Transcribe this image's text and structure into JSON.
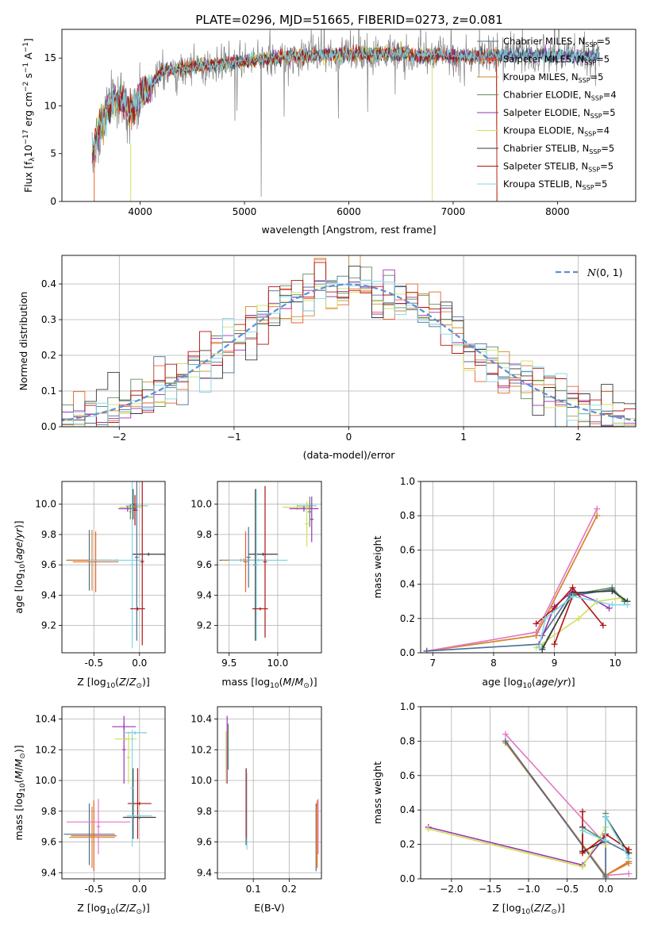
{
  "title": "PLATE=0296, MJD=51665, FIBERID=0273, z=0.081",
  "colors": {
    "chabrier_miles": "#4c6f93",
    "salpeter_miles": "#e8602c",
    "kroupa_miles": "#d08a2c",
    "chabrier_elodie": "#5e8d5e",
    "salpeter_elodie": "#9b32b0",
    "kroupa_elodie": "#cfe05a",
    "chabrier_stelib": "#3a3a3a",
    "salpeter_stelib": "#b31212",
    "kroupa_stelib": "#7fd6e8",
    "extra_pink": "#e377c2",
    "data_gray": "#808080",
    "normal_dashed": "#5b8fd6"
  },
  "chart_data": [
    {
      "type": "line",
      "id": "spectrum",
      "xlabel": "wavelength [Angstrom, rest frame]",
      "ylabel": "Flux [f_λ10^-17 erg cm^-2 s^-1 A^-1]",
      "xlim": [
        3250,
        8750
      ],
      "ylim": [
        0,
        18
      ],
      "xticks": [
        4000,
        5000,
        6000,
        7000,
        8000
      ],
      "yticks": [
        0,
        5,
        10,
        15
      ],
      "legend": "upper-right",
      "series": [
        {
          "name": "Chabrier MILES, N_SSP=5",
          "sub": "SSP",
          "suffix": "=5",
          "prefix": "Chabrier MILES, N"
        },
        {
          "name": "Salpeter MILES, N_SSP=5",
          "sub": "SSP",
          "suffix": "=5",
          "prefix": "Salpeter MILES, N"
        },
        {
          "name": "Kroupa MILES, N_SSP=5",
          "sub": "SSP",
          "suffix": "=5",
          "prefix": "Kroupa MILES, N"
        },
        {
          "name": "Chabrier ELODIE, N_SSP=4",
          "sub": "SSP",
          "suffix": "=4",
          "prefix": "Chabrier ELODIE, N"
        },
        {
          "name": "Salpeter ELODIE, N_SSP=5",
          "sub": "SSP",
          "suffix": "=5",
          "prefix": "Salpeter ELODIE, N"
        },
        {
          "name": "Kroupa ELODIE, N_SSP=4",
          "sub": "SSP",
          "suffix": "=4",
          "prefix": "Kroupa ELODIE, N"
        },
        {
          "name": "Chabrier STELIB, N_SSP=5",
          "sub": "SSP",
          "suffix": "=5",
          "prefix": "Chabrier STELIB, N"
        },
        {
          "name": "Salpeter STELIB, N_SSP=5",
          "sub": "SSP",
          "suffix": "=5",
          "prefix": "Salpeter STELIB, N"
        },
        {
          "name": "Kroupa STELIB, N_SSP=5",
          "sub": "SSP",
          "suffix": "=5",
          "prefix": "Kroupa STELIB, N"
        }
      ],
      "continuum": {
        "x": [
          3550,
          3600,
          3700,
          3800,
          3900,
          4000,
          4100,
          4200,
          4300,
          4500,
          4700,
          4900,
          5100,
          5300,
          5500,
          5700,
          5900,
          6100,
          6300,
          6500,
          6700,
          6900,
          7100,
          7300,
          7500,
          7700,
          7900,
          8100,
          8300
        ],
        "y": [
          5.5,
          7.5,
          10.0,
          10.8,
          9.5,
          11.0,
          12.0,
          13.5,
          13.8,
          14.0,
          14.3,
          14.5,
          14.8,
          15.0,
          15.2,
          15.3,
          15.4,
          15.4,
          15.4,
          15.5,
          15.3,
          15.3,
          15.2,
          15.2,
          15.3,
          15.3,
          15.3,
          15.3,
          15.2
        ]
      }
    },
    {
      "type": "histogram",
      "id": "residuals",
      "xlabel": "(data-model)/error",
      "ylabel": "Normed distribution",
      "xlim": [
        -2.5,
        2.5
      ],
      "ylim": [
        0,
        0.48
      ],
      "xticks": [
        -2,
        -1,
        0,
        1,
        2
      ],
      "yticks": [
        0.0,
        0.1,
        0.2,
        0.3,
        0.4
      ],
      "legend": "upper-right",
      "normal_label": "N(0,1)"
    },
    {
      "type": "errorbar",
      "id": "age_vs_Z",
      "xlabel": "Z [log10(Z/Z⊙)]",
      "ylabel": "age  [log10(age/yr)]",
      "xlim": [
        -0.85,
        0.28
      ],
      "ylim": [
        9.02,
        10.15
      ],
      "xticks": [
        -0.5,
        0.0
      ],
      "yticks": [
        9.2,
        9.4,
        9.6,
        9.8,
        10.0
      ],
      "points": [
        {
          "c": "kroupa_elodie",
          "x": -0.1,
          "xe": 0.12,
          "y": 9.98,
          "ye": 0.02
        },
        {
          "c": "salpeter_elodie",
          "x": -0.13,
          "xe": 0.1,
          "y": 9.97,
          "ye": 0.02
        },
        {
          "c": "chabrier_stelib",
          "x": -0.03,
          "xe": 0.12,
          "y": 9.99,
          "ye": 0.01
        },
        {
          "c": "kroupa_stelib",
          "x": -0.03,
          "xe": 0.12,
          "y": 9.99,
          "ye": 0.01
        },
        {
          "c": "chabrier_stelib",
          "x": -0.07,
          "xe": 0.02,
          "y": 10.0,
          "ye": 0.1
        },
        {
          "c": "salpeter_stelib",
          "x": -0.05,
          "xe": 0.03,
          "y": 9.96,
          "ye": 0.1
        },
        {
          "c": "chabrier_elodie",
          "x": -0.1,
          "xe": 0.01,
          "y": 9.95,
          "ye": 0.05
        },
        {
          "c": "chabrier_stelib",
          "x": 0.1,
          "xe": 0.18,
          "y": 9.67,
          "ye": 0.01
        },
        {
          "c": "chabrier_miles",
          "x": -0.55,
          "xe": 0.25,
          "y": 9.63,
          "ye": 0.2
        },
        {
          "c": "salpeter_miles",
          "x": -0.48,
          "xe": 0.25,
          "y": 9.62,
          "ye": 0.2
        },
        {
          "c": "kroupa_miles",
          "x": -0.52,
          "xe": 0.27,
          "y": 9.63,
          "ye": 0.2
        },
        {
          "c": "kroupa_stelib",
          "x": -0.25,
          "xe": 0.3,
          "y": 9.63,
          "ye": 0.01
        },
        {
          "c": "chabrier_miles",
          "x": -0.03,
          "xe": 0.02,
          "y": 9.65,
          "ye": 0.55
        },
        {
          "c": "kroupa_stelib",
          "x": -0.08,
          "xe": 0.02,
          "y": 9.6,
          "ye": 0.55
        },
        {
          "c": "salpeter_stelib",
          "x": -0.02,
          "xe": 0.08,
          "y": 9.31,
          "ye": 0.01
        },
        {
          "c": "salpeter_stelib",
          "x": 0.03,
          "xe": 0.02,
          "y": 9.62,
          "ye": 0.55
        }
      ]
    },
    {
      "type": "errorbar",
      "id": "age_vs_mass",
      "xlabel": "mass [log10(M/M⊙)]",
      "ylabel": "",
      "xlim": [
        9.38,
        10.45
      ],
      "ylim": [
        9.02,
        10.15
      ],
      "xticks": [
        9.5,
        10.0
      ],
      "yticks": [
        9.2,
        9.4,
        9.6,
        9.8,
        10.0
      ],
      "points": [
        {
          "c": "kroupa_elodie",
          "x": 10.2,
          "xe": 0.15,
          "y": 9.98,
          "ye": 0.02
        },
        {
          "c": "salpeter_elodie",
          "x": 10.27,
          "xe": 0.15,
          "y": 9.97,
          "ye": 0.02
        },
        {
          "c": "chabrier_stelib",
          "x": 10.3,
          "xe": 0.1,
          "y": 9.99,
          "ye": 0.01
        },
        {
          "c": "kroupa_stelib",
          "x": 10.3,
          "xe": 0.1,
          "y": 9.99,
          "ye": 0.01
        },
        {
          "c": "salpeter_elodie",
          "x": 10.35,
          "xe": 0.02,
          "y": 9.9,
          "ye": 0.15
        },
        {
          "c": "kroupa_elodie",
          "x": 10.3,
          "xe": 0.02,
          "y": 9.87,
          "ye": 0.15
        },
        {
          "c": "chabrier_elodie",
          "x": 10.33,
          "xe": 0.02,
          "y": 9.95,
          "ye": 0.1
        },
        {
          "c": "chabrier_stelib",
          "x": 9.85,
          "xe": 0.15,
          "y": 9.67,
          "ye": 0.01
        },
        {
          "c": "chabrier_miles",
          "x": 9.65,
          "xe": 0.25,
          "y": 9.63,
          "ye": 0.01
        },
        {
          "c": "kroupa_miles",
          "x": 9.62,
          "xe": 0.2,
          "y": 9.63,
          "ye": 0.01
        },
        {
          "c": "kroupa_stelib",
          "x": 9.8,
          "xe": 0.3,
          "y": 9.63,
          "ye": 0.01
        },
        {
          "c": "chabrier_miles",
          "x": 9.7,
          "xe": 0.02,
          "y": 9.65,
          "ye": 0.2
        },
        {
          "c": "salpeter_miles",
          "x": 9.67,
          "xe": 0.02,
          "y": 9.62,
          "ye": 0.2
        },
        {
          "c": "chabrier_stelib",
          "x": 9.77,
          "xe": 0.02,
          "y": 9.6,
          "ye": 0.5
        },
        {
          "c": "kroupa_stelib",
          "x": 9.78,
          "xe": 0.02,
          "y": 9.6,
          "ye": 0.5
        },
        {
          "c": "salpeter_stelib",
          "x": 9.82,
          "xe": 0.08,
          "y": 9.31,
          "ye": 0.01
        },
        {
          "c": "salpeter_stelib",
          "x": 9.87,
          "xe": 0.02,
          "y": 9.62,
          "ye": 0.5
        }
      ]
    },
    {
      "type": "line",
      "id": "weight_vs_age",
      "xlabel": "age  [log10(age/yr)]",
      "ylabel": "mass weight",
      "xlim": [
        6.8,
        10.35
      ],
      "ylim": [
        0,
        1
      ],
      "xticks": [
        7,
        8,
        9,
        10
      ],
      "yticks": [
        0.0,
        0.2,
        0.4,
        0.6,
        0.8,
        1.0
      ],
      "series": [
        {
          "c": "salpeter_miles",
          "x": [
            6.9,
            8.7,
            9.7
          ],
          "y": [
            0.01,
            0.1,
            0.8
          ]
        },
        {
          "c": "kroupa_miles",
          "x": [
            6.9,
            8.7,
            9.7
          ],
          "y": [
            0.01,
            0.1,
            0.8
          ]
        },
        {
          "c": "extra_pink",
          "x": [
            6.9,
            8.7,
            9.7
          ],
          "y": [
            0.01,
            0.12,
            0.84
          ]
        },
        {
          "c": "chabrier_miles",
          "x": [
            6.9,
            8.75,
            8.8,
            9.25,
            9.95,
            10.15
          ],
          "y": [
            0.01,
            0.05,
            0.1,
            0.33,
            0.37,
            0.3
          ]
        },
        {
          "c": "chabrier_elodie",
          "x": [
            8.8,
            9.3,
            9.95,
            10.15
          ],
          "y": [
            0.03,
            0.34,
            0.38,
            0.3
          ]
        },
        {
          "c": "salpeter_elodie",
          "x": [
            8.75,
            9.0,
            9.3,
            9.7,
            9.9
          ],
          "y": [
            0.05,
            0.27,
            0.36,
            0.3,
            0.26
          ]
        },
        {
          "c": "kroupa_elodie",
          "x": [
            8.7,
            9.4,
            9.7,
            10.1
          ],
          "y": [
            0.03,
            0.2,
            0.3,
            0.32
          ]
        },
        {
          "c": "chabrier_stelib",
          "x": [
            8.8,
            9.3,
            9.95,
            10.2
          ],
          "y": [
            0.02,
            0.35,
            0.36,
            0.3
          ]
        },
        {
          "c": "salpeter_stelib",
          "x": [
            8.7,
            9.0,
            9.3,
            9.8
          ],
          "y": [
            0.17,
            0.26,
            0.38,
            0.16
          ]
        },
        {
          "c": "salpeter_stelib",
          "x": [
            9.0,
            9.3
          ],
          "y": [
            0.05,
            0.33
          ]
        },
        {
          "c": "kroupa_stelib",
          "x": [
            8.75,
            8.85,
            9.3,
            9.95,
            10.2
          ],
          "y": [
            0.03,
            0.2,
            0.33,
            0.28,
            0.28
          ]
        }
      ]
    },
    {
      "type": "errorbar",
      "id": "mass_vs_Z",
      "xlabel": "Z [log10(Z/Z⊙)]",
      "ylabel": "mass [log10(M/M⊙)]",
      "xlim": [
        -0.85,
        0.28
      ],
      "ylim": [
        9.36,
        10.48
      ],
      "xticks": [
        -0.5,
        0.0
      ],
      "yticks": [
        9.4,
        9.6,
        9.8,
        10.0,
        10.2,
        10.4
      ],
      "points": [
        {
          "c": "salpeter_elodie",
          "x": -0.17,
          "xe": 0.13,
          "y": 10.35,
          "ye": 0.02
        },
        {
          "c": "salpeter_elodie",
          "x": -0.17,
          "xe": 0.02,
          "y": 10.2,
          "ye": 0.22
        },
        {
          "c": "kroupa_elodie",
          "x": -0.12,
          "xe": 0.02,
          "y": 10.15,
          "ye": 0.17
        },
        {
          "c": "kroupa_elodie",
          "x": -0.15,
          "xe": 0.12,
          "y": 10.27,
          "ye": 0.01
        },
        {
          "c": "chabrier_stelib",
          "x": -0.05,
          "xe": 0.13,
          "y": 10.31,
          "ye": 0.01
        },
        {
          "c": "kroupa_stelib",
          "x": -0.05,
          "xe": 0.13,
          "y": 10.31,
          "ye": 0.01
        },
        {
          "c": "salpeter_stelib",
          "x": 0.0,
          "xe": 0.13,
          "y": 9.85,
          "ye": 0.01
        },
        {
          "c": "salpeter_stelib",
          "x": -0.02,
          "xe": 0.02,
          "y": 9.85,
          "ye": 0.23
        },
        {
          "c": "chabrier_stelib",
          "x": -0.07,
          "xe": 0.02,
          "y": 9.85,
          "ye": 0.23
        },
        {
          "c": "chabrier_stelib",
          "x": 0.0,
          "xe": 0.18,
          "y": 9.76,
          "ye": 0.01
        },
        {
          "c": "kroupa_stelib",
          "x": 0.0,
          "xe": 0.14,
          "y": 9.77,
          "ye": 0.01
        },
        {
          "c": "chabrier_miles",
          "x": -0.55,
          "xe": 0.28,
          "y": 9.65,
          "ye": 0.2
        },
        {
          "c": "salpeter_miles",
          "x": -0.5,
          "xe": 0.25,
          "y": 9.64,
          "ye": 0.23
        },
        {
          "c": "kroupa_miles",
          "x": -0.52,
          "xe": 0.25,
          "y": 9.63,
          "ye": 0.2
        },
        {
          "c": "extra_pink",
          "x": -0.45,
          "xe": 0.35,
          "y": 9.73,
          "ye": 0.01
        },
        {
          "c": "extra_pink",
          "x": -0.45,
          "xe": 0.02,
          "y": 9.7,
          "ye": 0.18
        },
        {
          "c": "kroupa_stelib",
          "x": -0.08,
          "xe": 0.02,
          "y": 9.95,
          "ye": 0.38
        }
      ]
    },
    {
      "type": "errorbar",
      "id": "mass_vs_EBV",
      "xlabel": "E(B-V)",
      "ylabel": "",
      "xlim": [
        0.0,
        0.29
      ],
      "ylim": [
        9.36,
        10.48
      ],
      "xticks": [
        0.1,
        0.2
      ],
      "yticks": [
        9.4,
        9.6,
        9.8,
        10.0,
        10.2,
        10.4
      ],
      "points": [
        {
          "c": "salpeter_elodie",
          "x": 0.027,
          "xe": 0.0,
          "y": 10.2,
          "ye": 0.22
        },
        {
          "c": "kroupa_elodie",
          "x": 0.024,
          "xe": 0.0,
          "y": 10.15,
          "ye": 0.17
        },
        {
          "c": "chabrier_elodie",
          "x": 0.03,
          "xe": 0.0,
          "y": 10.22,
          "ye": 0.15
        },
        {
          "c": "chabrier_stelib",
          "x": 0.08,
          "xe": 0.0,
          "y": 9.83,
          "ye": 0.25
        },
        {
          "c": "kroupa_stelib",
          "x": 0.082,
          "xe": 0.0,
          "y": 9.8,
          "ye": 0.25
        },
        {
          "c": "salpeter_stelib",
          "x": 0.08,
          "xe": 0.0,
          "y": 9.85,
          "ye": 0.22
        },
        {
          "c": "chabrier_miles",
          "x": 0.275,
          "xe": 0.0,
          "y": 9.63,
          "ye": 0.22
        },
        {
          "c": "salpeter_miles",
          "x": 0.278,
          "xe": 0.0,
          "y": 9.65,
          "ye": 0.22
        },
        {
          "c": "extra_pink",
          "x": 0.281,
          "xe": 0.0,
          "y": 9.7,
          "ye": 0.18
        },
        {
          "c": "kroupa_miles",
          "x": 0.276,
          "xe": 0.0,
          "y": 9.63,
          "ye": 0.2
        }
      ]
    },
    {
      "type": "line",
      "id": "weight_vs_Z",
      "xlabel": "Z [log10(Z/Z⊙)]",
      "ylabel": "mass weight",
      "xlim": [
        -2.4,
        0.4
      ],
      "ylim": [
        0,
        1
      ],
      "xticks": [
        -2.0,
        -1.5,
        -1.0,
        -0.5,
        0.0
      ],
      "yticks": [
        0.0,
        0.2,
        0.4,
        0.6,
        0.8,
        1.0
      ],
      "series": [
        {
          "c": "extra_pink",
          "x": [
            -1.3,
            0.0,
            0.0,
            0.3
          ],
          "y": [
            0.84,
            0.2,
            0.02,
            0.03
          ]
        },
        {
          "c": "salpeter_miles",
          "x": [
            -1.3,
            0.0,
            0.3
          ],
          "y": [
            0.8,
            0.02,
            0.1
          ]
        },
        {
          "c": "kroupa_miles",
          "x": [
            -1.3,
            0.0,
            0.3
          ],
          "y": [
            0.79,
            0.02,
            0.09
          ]
        },
        {
          "c": "chabrier_miles",
          "x": [
            -1.3,
            0.0,
            0.0,
            0.3
          ],
          "y": [
            0.8,
            0.01,
            0.22,
            0.15
          ]
        },
        {
          "c": "salpeter_elodie",
          "x": [
            -2.3,
            -0.3,
            0.0,
            0.0
          ],
          "y": [
            0.3,
            0.08,
            0.25,
            0.36
          ]
        },
        {
          "c": "kroupa_elodie",
          "x": [
            -2.3,
            -0.3,
            0.0,
            0.0
          ],
          "y": [
            0.29,
            0.07,
            0.3,
            0.2
          ]
        },
        {
          "c": "chabrier_elodie",
          "x": [
            -0.3,
            0.0,
            0.0
          ],
          "y": [
            0.3,
            0.22,
            0.38
          ]
        },
        {
          "c": "chabrier_stelib",
          "x": [
            -0.3,
            -0.3,
            0.0,
            0.0,
            0.3
          ],
          "y": [
            0.3,
            0.16,
            0.22,
            0.36,
            0.15
          ]
        },
        {
          "c": "salpeter_stelib",
          "x": [
            -0.3,
            -0.3,
            0.0,
            0.0,
            0.3
          ],
          "y": [
            0.39,
            0.15,
            0.25,
            0.26,
            0.17
          ]
        },
        {
          "c": "kroupa_stelib",
          "x": [
            -0.3,
            0.0,
            0.0,
            0.3
          ],
          "y": [
            0.28,
            0.22,
            0.36,
            0.12
          ]
        }
      ]
    }
  ]
}
